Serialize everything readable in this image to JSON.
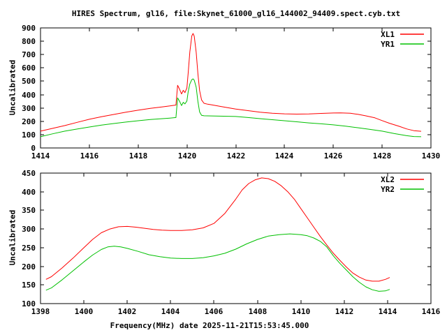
{
  "title": "HIRES Spectrum, gl16, file:Skynet_61000_gl16_144002_94409.spect.cyb.txt",
  "colors": {
    "series_red": "#ff0000",
    "series_green": "#00c000",
    "axis": "#000000",
    "background": "#ffffff"
  },
  "chart_data": [
    {
      "id": "top-spectrum",
      "type": "line",
      "title": "HIRES Spectrum, gl16, file:Skynet_61000_gl16_144002_94409.spect.cyb.txt",
      "xlabel": "",
      "ylabel": "Uncalibrated",
      "xlim": [
        1414,
        1430
      ],
      "ylim": [
        0,
        900
      ],
      "xticks": [
        1414,
        1416,
        1418,
        1420,
        1422,
        1424,
        1426,
        1428,
        1430
      ],
      "yticks": [
        0,
        100,
        200,
        300,
        400,
        500,
        600,
        700,
        800,
        900
      ],
      "grid": false,
      "legend_position": "top-right",
      "series": [
        {
          "name": "XL1",
          "color": "#ff0000",
          "points": [
            [
              1414,
              126
            ],
            [
              1414.5,
              147
            ],
            [
              1415,
              168
            ],
            [
              1415.5,
              192
            ],
            [
              1416,
              215
            ],
            [
              1416.5,
              234
            ],
            [
              1417,
              251
            ],
            [
              1417.5,
              268
            ],
            [
              1418,
              283
            ],
            [
              1418.5,
              297
            ],
            [
              1419,
              308
            ],
            [
              1419.3,
              315
            ],
            [
              1419.55,
              322
            ],
            [
              1419.62,
              470
            ],
            [
              1419.7,
              440
            ],
            [
              1419.78,
              405
            ],
            [
              1419.85,
              432
            ],
            [
              1419.92,
              415
            ],
            [
              1420,
              450
            ],
            [
              1420.05,
              560
            ],
            [
              1420.12,
              720
            ],
            [
              1420.2,
              840
            ],
            [
              1420.25,
              858
            ],
            [
              1420.3,
              838
            ],
            [
              1420.38,
              717
            ],
            [
              1420.45,
              560
            ],
            [
              1420.52,
              430
            ],
            [
              1420.6,
              360
            ],
            [
              1420.7,
              335
            ],
            [
              1420.85,
              328
            ],
            [
              1421,
              324
            ],
            [
              1421.5,
              307
            ],
            [
              1422,
              292
            ],
            [
              1422.5,
              280
            ],
            [
              1423,
              268
            ],
            [
              1423.5,
              260
            ],
            [
              1424,
              256
            ],
            [
              1424.5,
              254
            ],
            [
              1425,
              255
            ],
            [
              1425.5,
              259
            ],
            [
              1426,
              262
            ],
            [
              1426.3,
              263
            ],
            [
              1426.7,
              260
            ],
            [
              1427,
              252
            ],
            [
              1427.3,
              242
            ],
            [
              1427.7,
              226
            ],
            [
              1428,
              205
            ],
            [
              1428.3,
              185
            ],
            [
              1428.7,
              162
            ],
            [
              1429,
              143
            ],
            [
              1429.3,
              130
            ],
            [
              1429.6,
              125
            ]
          ]
        },
        {
          "name": "YR1",
          "color": "#00c000",
          "points": [
            [
              1414,
              84
            ],
            [
              1414.5,
              106
            ],
            [
              1415,
              126
            ],
            [
              1415.5,
              142
            ],
            [
              1416,
              157
            ],
            [
              1416.5,
              171
            ],
            [
              1417,
              183
            ],
            [
              1417.5,
              194
            ],
            [
              1418,
              204
            ],
            [
              1418.5,
              213
            ],
            [
              1419,
              220
            ],
            [
              1419.3,
              224
            ],
            [
              1419.55,
              228
            ],
            [
              1419.62,
              375
            ],
            [
              1419.7,
              350
            ],
            [
              1419.78,
              318
            ],
            [
              1419.85,
              342
            ],
            [
              1419.92,
              330
            ],
            [
              1420,
              352
            ],
            [
              1420.05,
              420
            ],
            [
              1420.12,
              480
            ],
            [
              1420.2,
              512
            ],
            [
              1420.25,
              518
            ],
            [
              1420.3,
              508
            ],
            [
              1420.38,
              455
            ],
            [
              1420.45,
              350
            ],
            [
              1420.52,
              270
            ],
            [
              1420.6,
              245
            ],
            [
              1420.7,
              241
            ],
            [
              1421,
              240
            ],
            [
              1421.5,
              238
            ],
            [
              1422,
              236
            ],
            [
              1422.5,
              228
            ],
            [
              1423,
              220
            ],
            [
              1423.5,
              212
            ],
            [
              1424,
              204
            ],
            [
              1424.5,
              196
            ],
            [
              1425,
              188
            ],
            [
              1425.5,
              181
            ],
            [
              1426,
              173
            ],
            [
              1426.5,
              163
            ],
            [
              1427,
              152
            ],
            [
              1427.5,
              139
            ],
            [
              1428,
              126
            ],
            [
              1428.5,
              108
            ],
            [
              1429,
              92
            ],
            [
              1429.3,
              86
            ],
            [
              1429.6,
              84
            ]
          ]
        }
      ]
    },
    {
      "id": "bottom-spectrum",
      "type": "line",
      "title": "",
      "xlabel": "Frequency(MHz) date 2025-11-21T15:53:45.000",
      "ylabel": "Uncalibrated",
      "xlim": [
        1398,
        1416
      ],
      "ylim": [
        100,
        450
      ],
      "xticks": [
        1398,
        1400,
        1402,
        1404,
        1406,
        1408,
        1410,
        1412,
        1414,
        1416
      ],
      "yticks": [
        100,
        150,
        200,
        250,
        300,
        350,
        400,
        450
      ],
      "grid": false,
      "legend_position": "top-right",
      "series": [
        {
          "name": "XL2",
          "color": "#ff0000",
          "points": [
            [
              1398.25,
              165
            ],
            [
              1398.5,
              172
            ],
            [
              1399,
              196
            ],
            [
              1399.5,
              222
            ],
            [
              1400,
              250
            ],
            [
              1400.4,
              272
            ],
            [
              1400.8,
              290
            ],
            [
              1401.2,
              300
            ],
            [
              1401.6,
              306
            ],
            [
              1402,
              307
            ],
            [
              1402.4,
              305
            ],
            [
              1402.8,
              302
            ],
            [
              1403.2,
              299
            ],
            [
              1403.6,
              297
            ],
            [
              1404,
              296
            ],
            [
              1404.5,
              296
            ],
            [
              1405,
              298
            ],
            [
              1405.5,
              303
            ],
            [
              1406,
              315
            ],
            [
              1406.5,
              342
            ],
            [
              1407,
              380
            ],
            [
              1407.3,
              405
            ],
            [
              1407.6,
              422
            ],
            [
              1407.9,
              432
            ],
            [
              1408.2,
              437
            ],
            [
              1408.5,
              435
            ],
            [
              1408.8,
              428
            ],
            [
              1409.1,
              416
            ],
            [
              1409.4,
              400
            ],
            [
              1409.7,
              380
            ],
            [
              1410,
              355
            ],
            [
              1410.3,
              330
            ],
            [
              1410.6,
              305
            ],
            [
              1410.9,
              280
            ],
            [
              1411.2,
              257
            ],
            [
              1411.5,
              235
            ],
            [
              1411.8,
              216
            ],
            [
              1412.1,
              198
            ],
            [
              1412.4,
              182
            ],
            [
              1412.7,
              171
            ],
            [
              1413,
              163
            ],
            [
              1413.3,
              160
            ],
            [
              1413.6,
              160
            ],
            [
              1413.9,
              165
            ],
            [
              1414.1,
              170
            ]
          ]
        },
        {
          "name": "YR2",
          "color": "#00c000",
          "points": [
            [
              1398.25,
              136
            ],
            [
              1398.5,
              142
            ],
            [
              1399,
              164
            ],
            [
              1399.5,
              188
            ],
            [
              1400,
              212
            ],
            [
              1400.4,
              230
            ],
            [
              1400.8,
              245
            ],
            [
              1401.1,
              252
            ],
            [
              1401.4,
              254
            ],
            [
              1401.7,
              252
            ],
            [
              1402,
              248
            ],
            [
              1402.5,
              240
            ],
            [
              1403,
              231
            ],
            [
              1403.5,
              226
            ],
            [
              1404,
              222
            ],
            [
              1404.5,
              221
            ],
            [
              1405,
              221
            ],
            [
              1405.5,
              223
            ],
            [
              1406,
              228
            ],
            [
              1406.5,
              235
            ],
            [
              1407,
              246
            ],
            [
              1407.5,
              260
            ],
            [
              1408,
              272
            ],
            [
              1408.5,
              281
            ],
            [
              1409,
              285
            ],
            [
              1409.5,
              287
            ],
            [
              1410,
              285
            ],
            [
              1410.3,
              282
            ],
            [
              1410.6,
              276
            ],
            [
              1410.9,
              267
            ],
            [
              1411.2,
              252
            ],
            [
              1411.5,
              228
            ],
            [
              1411.8,
              208
            ],
            [
              1412.1,
              190
            ],
            [
              1412.4,
              172
            ],
            [
              1412.7,
              157
            ],
            [
              1413,
              145
            ],
            [
              1413.3,
              137
            ],
            [
              1413.6,
              133
            ],
            [
              1413.9,
              134
            ],
            [
              1414.1,
              138
            ]
          ]
        }
      ]
    }
  ]
}
